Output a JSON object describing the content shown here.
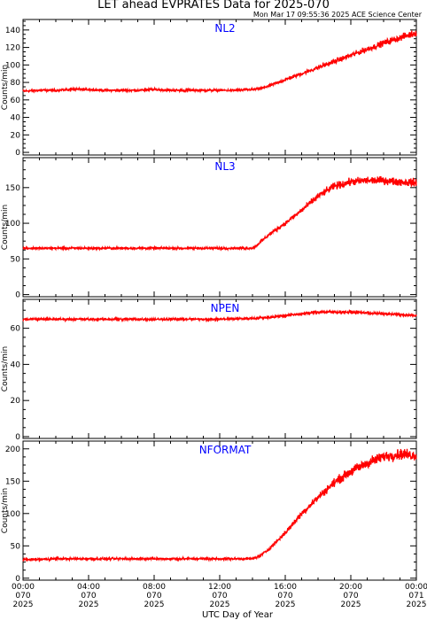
{
  "header": {
    "title": "LET ahead EVPRATES Data for 2025-070",
    "timestamp": "Mon Mar 17 09:55:36 2025 ACE Science Center"
  },
  "colors": {
    "series": "#ff0000",
    "panel_label": "#0000ff",
    "axes": "#000000"
  },
  "chart_data": [
    {
      "type": "line",
      "title": "NL2",
      "ylabel": "Counts/min",
      "ylim": [
        -3,
        152
      ],
      "yticks": [
        0,
        20,
        40,
        60,
        80,
        100,
        120,
        140
      ],
      "xlim": [
        0,
        24
      ],
      "series": [
        {
          "x": [
            0,
            1,
            2,
            3,
            4,
            5,
            6,
            7,
            8,
            9,
            10,
            11,
            12,
            13,
            14,
            14.5,
            15,
            16,
            17,
            18,
            19,
            20,
            21,
            22,
            23,
            24
          ],
          "values": [
            70,
            71,
            71,
            72,
            72,
            71,
            71,
            71,
            72,
            71,
            71,
            71,
            71,
            71,
            72,
            73,
            76,
            83,
            90,
            97,
            104,
            111,
            118,
            125,
            131,
            137
          ]
        }
      ]
    },
    {
      "type": "line",
      "title": "NL3",
      "ylabel": "Counts/min",
      "ylim": [
        -3,
        192
      ],
      "yticks": [
        0,
        50,
        100,
        150
      ],
      "xlim": [
        0,
        24
      ],
      "series": [
        {
          "x": [
            0,
            1,
            2,
            3,
            4,
            5,
            6,
            7,
            8,
            9,
            10,
            11,
            12,
            13,
            14,
            14.2,
            14.6,
            15,
            16,
            17,
            18,
            19,
            20,
            21,
            22,
            23,
            24
          ],
          "values": [
            65,
            65,
            65,
            65,
            65,
            65,
            65,
            65,
            65,
            65,
            65,
            65,
            65,
            65,
            65,
            68,
            76,
            84,
            100,
            118,
            138,
            152,
            158,
            160,
            160,
            158,
            157
          ]
        }
      ]
    },
    {
      "type": "line",
      "title": "NPEN",
      "ylabel": "Counts/min",
      "ylim": [
        -1,
        76
      ],
      "yticks": [
        0,
        20,
        40,
        60
      ],
      "xlim": [
        0,
        24
      ],
      "series": [
        {
          "x": [
            0,
            2,
            4,
            6,
            8,
            10,
            12,
            14,
            15,
            16,
            17,
            18,
            19,
            20,
            21,
            22,
            23,
            24
          ],
          "values": [
            65,
            65,
            65,
            65,
            65,
            65,
            65,
            65.5,
            66,
            67,
            68,
            69,
            69,
            69,
            68.5,
            68,
            67.5,
            67
          ]
        }
      ]
    },
    {
      "type": "line",
      "title": "NFORMAT",
      "ylabel": "Counts/min",
      "ylim": [
        -3,
        212
      ],
      "yticks": [
        0,
        50,
        100,
        150,
        200
      ],
      "xlim": [
        0,
        24
      ],
      "series": [
        {
          "x": [
            0,
            1,
            2,
            3,
            4,
            5,
            6,
            7,
            8,
            9,
            10,
            11,
            12,
            13,
            14,
            14.5,
            15,
            16,
            17,
            18,
            19,
            20,
            21,
            22,
            23,
            24
          ],
          "values": [
            29,
            29,
            30,
            30,
            30,
            30,
            30,
            30,
            30,
            30,
            30,
            30,
            30,
            30,
            30,
            35,
            45,
            70,
            100,
            125,
            148,
            165,
            178,
            188,
            192,
            190
          ]
        }
      ]
    }
  ],
  "x_axis": {
    "tick_labels": [
      [
        "00:00",
        "070",
        "2025"
      ],
      [
        "04:00",
        "070",
        "2025"
      ],
      [
        "08:00",
        "070",
        "2025"
      ],
      [
        "12:00",
        "070",
        "2025"
      ],
      [
        "16:00",
        "070",
        "2025"
      ],
      [
        "20:00",
        "070",
        "2025"
      ],
      [
        "00:00",
        "071",
        "2025"
      ]
    ],
    "label": "UTC Day of Year"
  }
}
